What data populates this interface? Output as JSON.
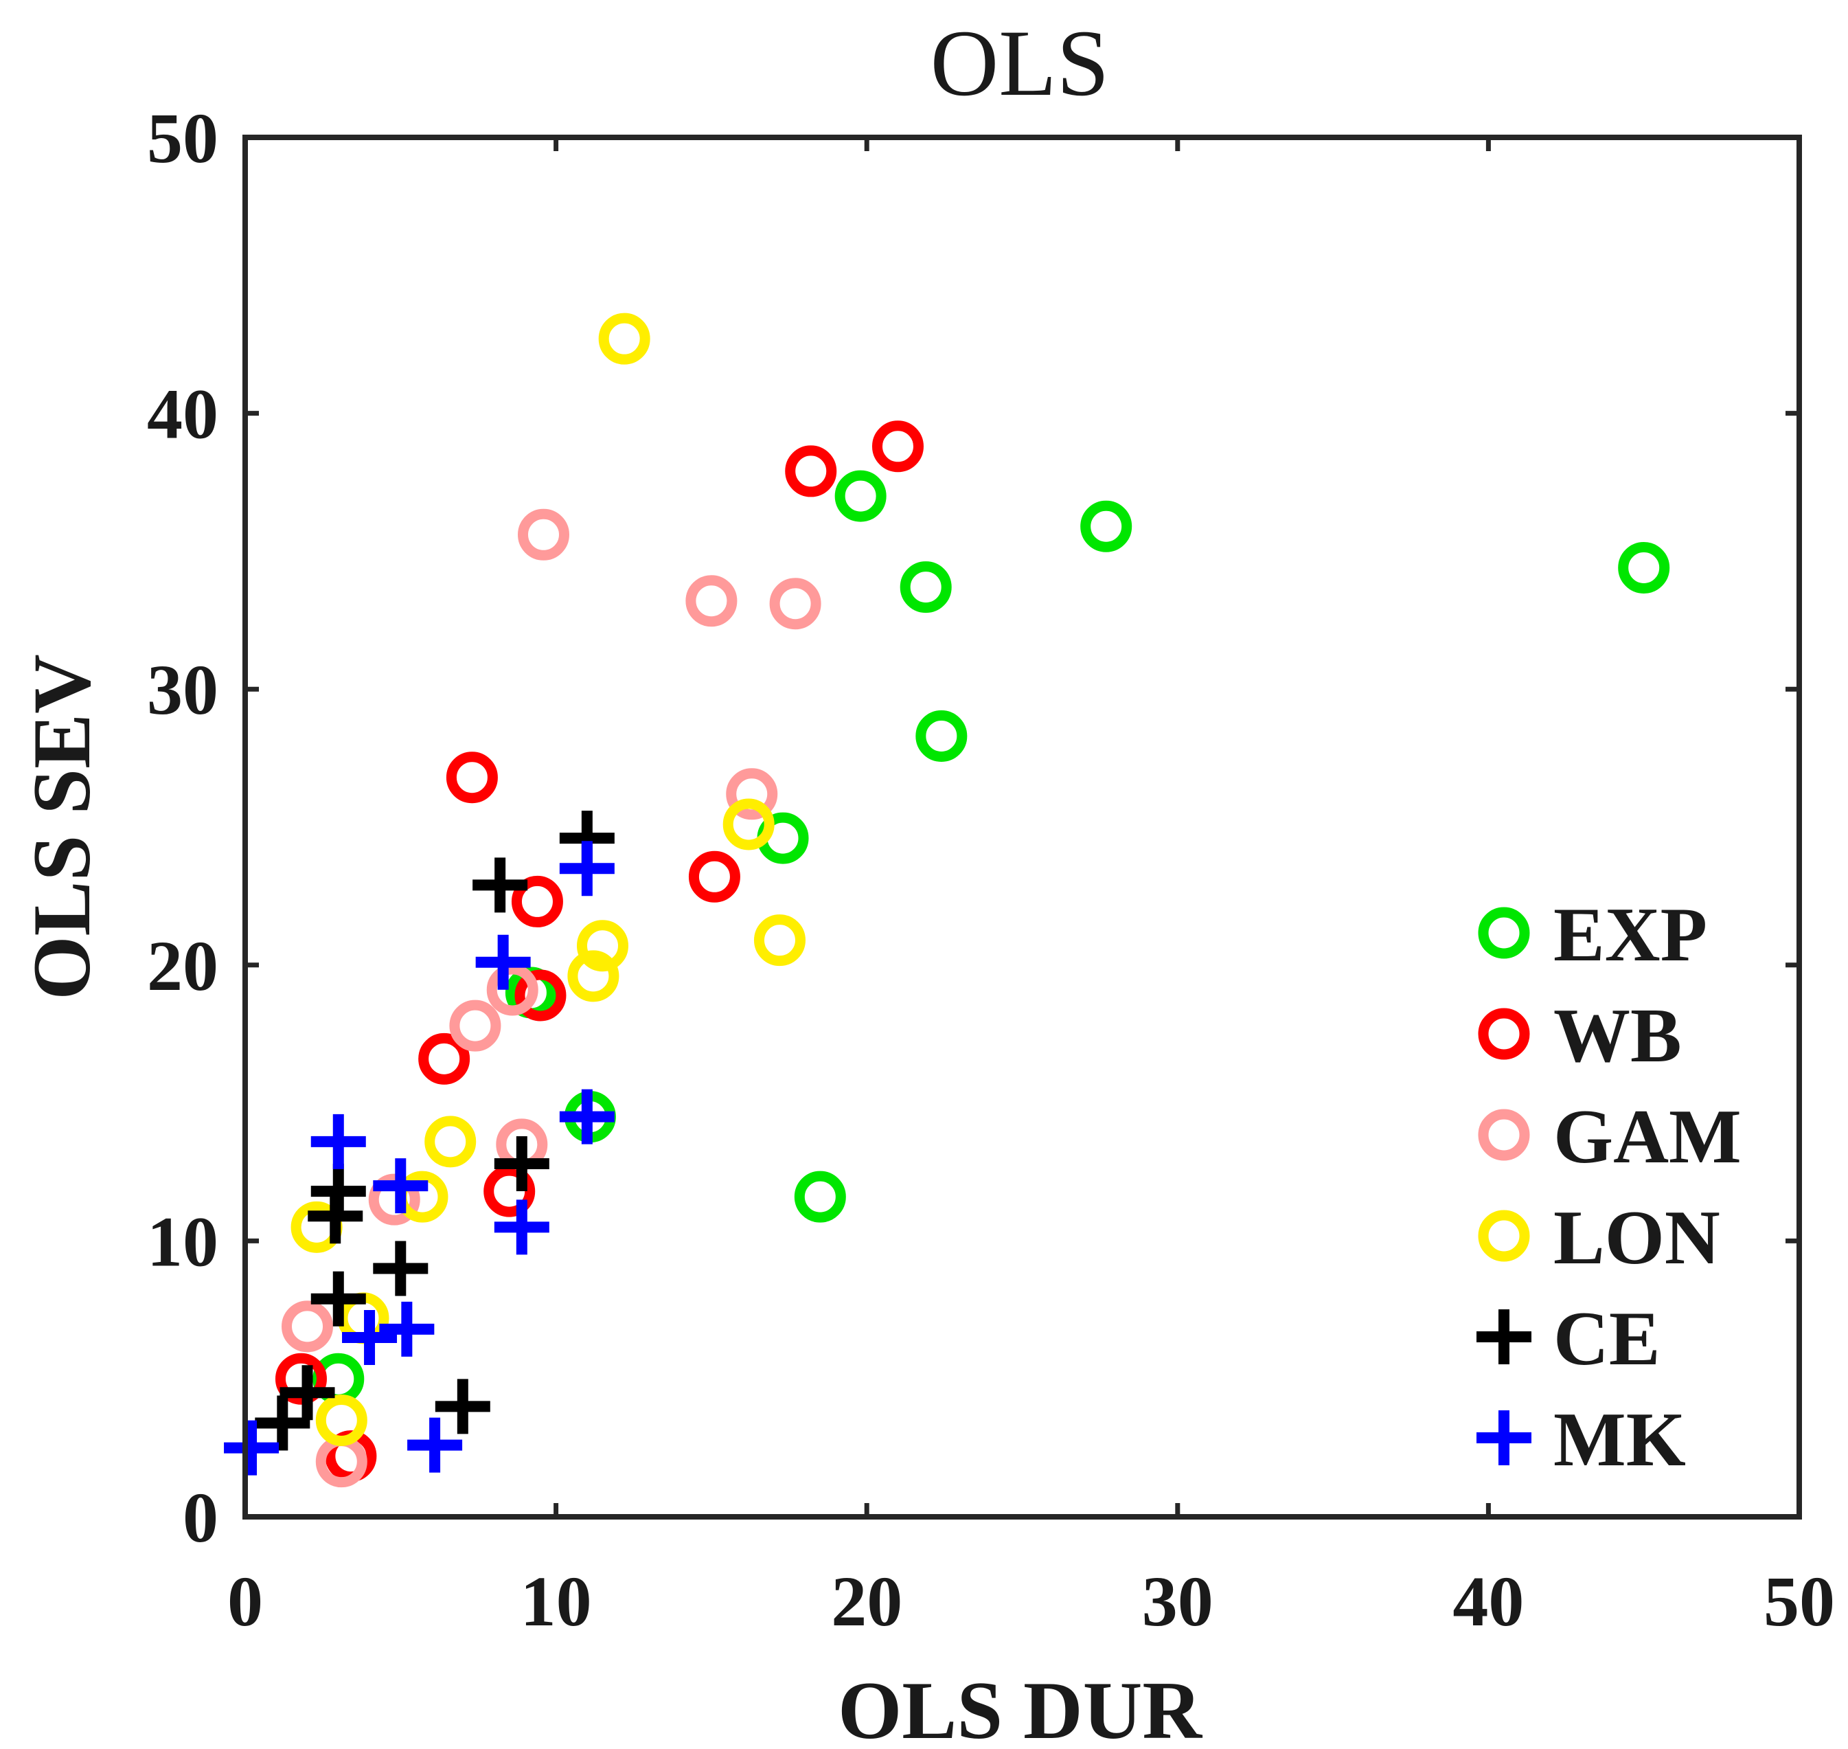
{
  "chart_data": {
    "type": "scatter",
    "title": "OLS",
    "xlabel": "OLS DUR",
    "ylabel": "OLS SEV",
    "xlim": [
      0,
      50
    ],
    "ylim": [
      0,
      50
    ],
    "xticks": [
      0,
      10,
      20,
      30,
      40,
      50
    ],
    "yticks": [
      0,
      10,
      20,
      30,
      40,
      50
    ],
    "grid": false,
    "legend_position": "bottom-right",
    "series": [
      {
        "name": "EXP",
        "marker": "circle",
        "color": "#00e600",
        "points": [
          [
            19.8,
            37.0
          ],
          [
            21.9,
            33.7
          ],
          [
            27.7,
            35.9
          ],
          [
            45.0,
            34.4
          ],
          [
            22.4,
            28.3
          ],
          [
            17.3,
            24.6
          ],
          [
            18.5,
            11.6
          ],
          [
            9.2,
            19.0
          ],
          [
            11.1,
            14.5
          ],
          [
            3.0,
            5.0
          ]
        ]
      },
      {
        "name": "WB",
        "marker": "circle",
        "color": "#ff0000",
        "points": [
          [
            21.0,
            38.8
          ],
          [
            18.2,
            37.9
          ],
          [
            7.3,
            26.8
          ],
          [
            15.1,
            23.2
          ],
          [
            9.4,
            22.3
          ],
          [
            9.5,
            18.9
          ],
          [
            6.4,
            16.6
          ],
          [
            8.5,
            11.8
          ],
          [
            1.8,
            5.0
          ],
          [
            3.4,
            2.2
          ]
        ]
      },
      {
        "name": "GAM",
        "marker": "circle",
        "color": "#ff9a9a",
        "points": [
          [
            9.6,
            35.6
          ],
          [
            15.0,
            33.2
          ],
          [
            17.7,
            33.1
          ],
          [
            16.3,
            26.2
          ],
          [
            7.4,
            17.8
          ],
          [
            8.6,
            19.1
          ],
          [
            8.9,
            13.5
          ],
          [
            4.8,
            11.5
          ],
          [
            2.0,
            6.9
          ],
          [
            3.1,
            2.0
          ]
        ]
      },
      {
        "name": "LON",
        "marker": "circle",
        "color": "#ffee00",
        "points": [
          [
            12.2,
            42.7
          ],
          [
            16.2,
            25.1
          ],
          [
            17.2,
            20.9
          ],
          [
            11.5,
            20.7
          ],
          [
            11.2,
            19.6
          ],
          [
            6.6,
            13.6
          ],
          [
            5.7,
            11.6
          ],
          [
            2.3,
            10.5
          ],
          [
            3.8,
            7.2
          ],
          [
            3.1,
            3.5
          ]
        ]
      },
      {
        "name": "CE",
        "marker": "plus",
        "color": "#000000",
        "points": [
          [
            11.0,
            24.6
          ],
          [
            8.2,
            22.9
          ],
          [
            8.9,
            12.8
          ],
          [
            3.0,
            11.8
          ],
          [
            2.9,
            10.9
          ],
          [
            5.0,
            9.0
          ],
          [
            3.0,
            7.9
          ],
          [
            2.0,
            4.5
          ],
          [
            1.2,
            3.4
          ],
          [
            7.0,
            4.0
          ]
        ]
      },
      {
        "name": "MK",
        "marker": "plus",
        "color": "#0000ff",
        "points": [
          [
            11.0,
            23.5
          ],
          [
            8.3,
            20.1
          ],
          [
            11.0,
            14.5
          ],
          [
            3.0,
            13.6
          ],
          [
            5.0,
            12.0
          ],
          [
            8.9,
            10.5
          ],
          [
            4.0,
            6.5
          ],
          [
            5.2,
            6.8
          ],
          [
            0.2,
            2.5
          ],
          [
            6.1,
            2.6
          ]
        ]
      }
    ]
  }
}
